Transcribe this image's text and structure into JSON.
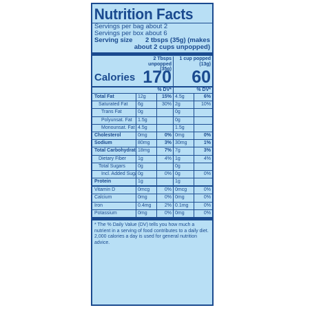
{
  "panel": {
    "title": "Nutrition Facts",
    "servings_bag": "Servings per bag about 2",
    "servings_box": "Servings per box about 6",
    "serving_size_label": "Serving size",
    "serving_size_value_1": "2 tbsps (35g) (makes",
    "serving_size_value_2": "about 2 cups unpopped)",
    "col1_header_1": "2 Tbsps",
    "col1_header_2": "unpopped (35g)",
    "col2_header_1": "1 cup popped",
    "col2_header_2": "(13g)",
    "calories_label": "Calories",
    "calories_1": "170",
    "calories_2": "60",
    "dv_label": "% DV*",
    "rows": [
      {
        "name": "Total Fat",
        "a1": "12g",
        "p1": "15%",
        "a2": "4.5g",
        "p2": "6%"
      },
      {
        "name": "Saturated Fat",
        "a1": "6g",
        "p1": "30%",
        "a2": "2g",
        "p2": "10%"
      },
      {
        "name": "Trans Fat",
        "a1": "0g",
        "p1": "",
        "a2": "0g",
        "p2": ""
      },
      {
        "name": "Polyunsat. Fat",
        "a1": "1.5g",
        "p1": "",
        "a2": "0g",
        "p2": ""
      },
      {
        "name": "Monounsat. Fat",
        "a1": "4.5g",
        "p1": "",
        "a2": "1.5g",
        "p2": ""
      },
      {
        "name": "Cholesterol",
        "a1": "0mg",
        "p1": "0%",
        "a2": "0mg",
        "p2": "0%"
      },
      {
        "name": "Sodium",
        "a1": "80mg",
        "p1": "3%",
        "a2": "30mg",
        "p2": "1%"
      },
      {
        "name": "Total Carbohydrate",
        "a1": "18mg",
        "p1": "7%",
        "a2": "7g",
        "p2": "3%"
      },
      {
        "name": "Dietary Fiber",
        "a1": "1g",
        "p1": "4%",
        "a2": "1g",
        "p2": "4%"
      },
      {
        "name": "Total Sugars",
        "a1": "0g",
        "p1": "",
        "a2": "0g",
        "p2": ""
      },
      {
        "name": "Incl. Added Sugars",
        "a1": "0g",
        "p1": "0%",
        "a2": "0g",
        "p2": "0%"
      },
      {
        "name": "Protein",
        "a1": "1g",
        "p1": "",
        "a2": "1g",
        "p2": ""
      },
      {
        "name": "Vitamin D",
        "a1": "0mcg",
        "p1": "0%",
        "a2": "0mcg",
        "p2": "0%"
      },
      {
        "name": "Calcium",
        "a1": "0mg",
        "p1": "0%",
        "a2": "0mg",
        "p2": "0%"
      },
      {
        "name": "Iron",
        "a1": "0.4mg",
        "p1": "2%",
        "a2": "0.1mg",
        "p2": "0%"
      },
      {
        "name": "Potassium",
        "a1": "0mg",
        "p1": "0%",
        "a2": "0mg",
        "p2": "0%"
      }
    ],
    "footnote": "* The % Daily Value (DV) tells you how much a nutrient in a serving of food contributes to a daily diet. 2,000 calories a day is used for general nutrition advice."
  }
}
